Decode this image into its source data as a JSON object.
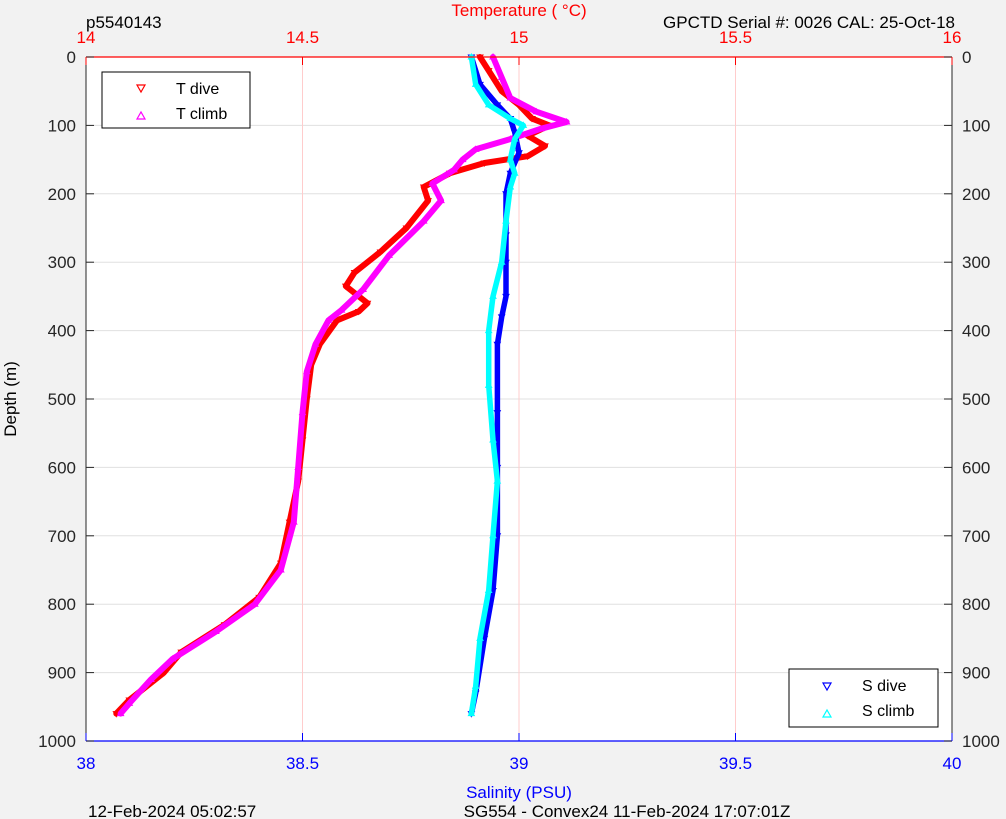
{
  "header": {
    "left": "p5540143",
    "right": "GPCTD Serial #: 0026 CAL: 25-Oct-18"
  },
  "footer": {
    "left": "12-Feb-2024 05:02:57",
    "center": "SG554 - Convex24 11-Feb-2024 17:07:01Z"
  },
  "colors": {
    "temperature_axis": "#ff0000",
    "salinity_axis": "#0000ff",
    "t_dive": "#ff0000",
    "t_climb": "#ff00ff",
    "s_dive": "#0000ff",
    "s_climb": "#00ffff",
    "grid_temperature": "#ffcccc",
    "grid_depth": "#e0e0e0"
  },
  "chart_data": {
    "type": "line",
    "title": "",
    "ylabel": "Depth (m)",
    "ylim": [
      0,
      1000
    ],
    "y_reversed": true,
    "y_ticks": [
      "0",
      "100",
      "200",
      "300",
      "400",
      "500",
      "600",
      "700",
      "800",
      "900",
      "1000"
    ],
    "x_top": {
      "label": "Temperature (    °C)",
      "lim": [
        14,
        16
      ],
      "ticks": [
        "14",
        "14.5",
        "15",
        "15.5",
        "16"
      ]
    },
    "x_bottom": {
      "label": "Salinity (PSU)",
      "lim": [
        38,
        40
      ],
      "ticks": [
        "38",
        "38.5",
        "39",
        "39.5",
        "40"
      ]
    },
    "grid": true,
    "legend_temperature": {
      "placement": "top-left",
      "entries": [
        "T dive",
        "T climb"
      ]
    },
    "legend_salinity": {
      "placement": "bottom-right",
      "entries": [
        "S dive",
        "S climb"
      ]
    },
    "series": [
      {
        "name": "T dive",
        "axis": "temperature",
        "marker": "triangle-down",
        "points": [
          [
            14.91,
            0
          ],
          [
            14.93,
            20
          ],
          [
            14.96,
            50
          ],
          [
            15.0,
            70
          ],
          [
            15.03,
            90
          ],
          [
            15.07,
            100
          ],
          [
            15.02,
            115
          ],
          [
            15.06,
            130
          ],
          [
            15.02,
            145
          ],
          [
            14.92,
            155
          ],
          [
            14.84,
            170
          ],
          [
            14.78,
            190
          ],
          [
            14.79,
            210
          ],
          [
            14.74,
            250
          ],
          [
            14.68,
            285
          ],
          [
            14.62,
            315
          ],
          [
            14.6,
            335
          ],
          [
            14.65,
            360
          ],
          [
            14.63,
            372
          ],
          [
            14.58,
            385
          ],
          [
            14.54,
            420
          ],
          [
            14.52,
            450
          ],
          [
            14.51,
            500
          ],
          [
            14.5,
            560
          ],
          [
            14.49,
            620
          ],
          [
            14.47,
            680
          ],
          [
            14.45,
            740
          ],
          [
            14.4,
            790
          ],
          [
            14.32,
            830
          ],
          [
            14.22,
            870
          ],
          [
            14.18,
            900
          ],
          [
            14.1,
            940
          ],
          [
            14.07,
            960
          ]
        ]
      },
      {
        "name": "T climb",
        "axis": "temperature",
        "marker": "triangle-up",
        "points": [
          [
            14.94,
            0
          ],
          [
            14.96,
            30
          ],
          [
            14.98,
            60
          ],
          [
            15.04,
            80
          ],
          [
            15.11,
            95
          ],
          [
            15.05,
            105
          ],
          [
            14.98,
            120
          ],
          [
            14.9,
            135
          ],
          [
            14.87,
            150
          ],
          [
            14.85,
            165
          ],
          [
            14.8,
            185
          ],
          [
            14.82,
            210
          ],
          [
            14.78,
            240
          ],
          [
            14.7,
            290
          ],
          [
            14.64,
            340
          ],
          [
            14.59,
            370
          ],
          [
            14.56,
            385
          ],
          [
            14.53,
            420
          ],
          [
            14.51,
            460
          ],
          [
            14.5,
            520
          ],
          [
            14.49,
            600
          ],
          [
            14.48,
            680
          ],
          [
            14.45,
            750
          ],
          [
            14.39,
            800
          ],
          [
            14.3,
            840
          ],
          [
            14.2,
            880
          ],
          [
            14.15,
            910
          ],
          [
            14.1,
            945
          ],
          [
            14.08,
            960
          ]
        ]
      },
      {
        "name": "S dive",
        "axis": "salinity",
        "marker": "triangle-down",
        "points": [
          [
            38.89,
            0
          ],
          [
            38.91,
            40
          ],
          [
            38.95,
            70
          ],
          [
            38.98,
            90
          ],
          [
            38.99,
            110
          ],
          [
            39.0,
            140
          ],
          [
            38.98,
            170
          ],
          [
            38.97,
            200
          ],
          [
            38.97,
            260
          ],
          [
            38.97,
            300
          ],
          [
            38.97,
            350
          ],
          [
            38.96,
            380
          ],
          [
            38.95,
            420
          ],
          [
            38.95,
            520
          ],
          [
            38.95,
            600
          ],
          [
            38.95,
            700
          ],
          [
            38.94,
            780
          ],
          [
            38.92,
            850
          ],
          [
            38.9,
            930
          ],
          [
            38.89,
            960
          ]
        ]
      },
      {
        "name": "S climb",
        "axis": "salinity",
        "marker": "triangle-up",
        "points": [
          [
            38.89,
            0
          ],
          [
            38.9,
            40
          ],
          [
            38.93,
            70
          ],
          [
            38.98,
            90
          ],
          [
            39.01,
            100
          ],
          [
            38.99,
            120
          ],
          [
            38.98,
            150
          ],
          [
            38.99,
            170
          ],
          [
            38.98,
            190
          ],
          [
            38.97,
            240
          ],
          [
            38.96,
            300
          ],
          [
            38.94,
            350
          ],
          [
            38.93,
            400
          ],
          [
            38.93,
            480
          ],
          [
            38.94,
            560
          ],
          [
            38.95,
            620
          ],
          [
            38.94,
            700
          ],
          [
            38.93,
            780
          ],
          [
            38.91,
            850
          ],
          [
            38.9,
            920
          ],
          [
            38.89,
            960
          ]
        ]
      }
    ]
  }
}
